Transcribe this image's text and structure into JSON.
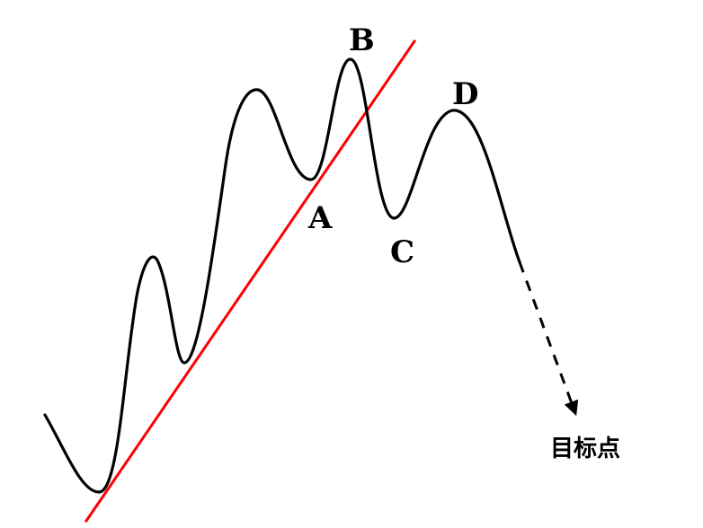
{
  "diagram": {
    "labels": {
      "a": "A",
      "b": "B",
      "c": "C",
      "d": "D",
      "target": "目标点"
    },
    "colors": {
      "price_line": "#000000",
      "trend_line": "#ff0000",
      "projection": "#000000",
      "text": "#000000",
      "background": "#ffffff"
    }
  }
}
